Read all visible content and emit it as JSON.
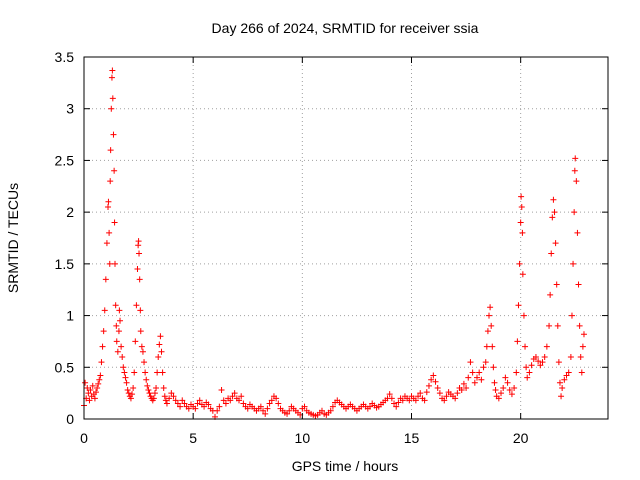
{
  "chart_data": {
    "type": "scatter",
    "title": "Day 266 of 2024, SRMTID for receiver ssia",
    "xlabel": "GPS time / hours",
    "ylabel": "SRMTID / TECUs",
    "xlim": [
      0,
      24
    ],
    "ylim": [
      0,
      3.5
    ],
    "xticks": [
      0,
      5,
      10,
      15,
      20
    ],
    "xtick_labels": [
      "0",
      "5",
      "10",
      "15",
      "20"
    ],
    "yticks": [
      0,
      0.5,
      1,
      1.5,
      2,
      2.5,
      3,
      3.5
    ],
    "ytick_labels": [
      "0",
      "0.5",
      "1",
      "1.5",
      "2",
      "2.5",
      "3",
      "3.5"
    ],
    "grid": true,
    "marker": "+",
    "color": "#ff0000",
    "series": [
      {
        "name": "SRMTID",
        "points": [
          [
            0.0,
            0.13
          ],
          [
            0.05,
            0.35
          ],
          [
            0.1,
            0.2
          ],
          [
            0.15,
            0.3
          ],
          [
            0.2,
            0.25
          ],
          [
            0.25,
            0.18
          ],
          [
            0.3,
            0.28
          ],
          [
            0.35,
            0.22
          ],
          [
            0.4,
            0.32
          ],
          [
            0.45,
            0.24
          ],
          [
            0.5,
            0.2
          ],
          [
            0.55,
            0.26
          ],
          [
            0.6,
            0.3
          ],
          [
            0.65,
            0.34
          ],
          [
            0.7,
            0.38
          ],
          [
            0.75,
            0.42
          ],
          [
            0.8,
            0.55
          ],
          [
            0.85,
            0.7
          ],
          [
            0.9,
            0.85
          ],
          [
            0.95,
            1.05
          ],
          [
            1.0,
            1.35
          ],
          [
            1.05,
            1.7
          ],
          [
            1.1,
            2.05
          ],
          [
            1.12,
            2.1
          ],
          [
            1.15,
            1.8
          ],
          [
            1.18,
            1.5
          ],
          [
            1.2,
            2.3
          ],
          [
            1.22,
            2.6
          ],
          [
            1.25,
            3.0
          ],
          [
            1.28,
            3.3
          ],
          [
            1.3,
            3.37
          ],
          [
            1.32,
            3.1
          ],
          [
            1.35,
            2.75
          ],
          [
            1.38,
            2.4
          ],
          [
            1.4,
            1.9
          ],
          [
            1.42,
            1.5
          ],
          [
            1.45,
            1.1
          ],
          [
            1.48,
            0.9
          ],
          [
            1.5,
            0.75
          ],
          [
            1.55,
            0.65
          ],
          [
            1.6,
            0.85
          ],
          [
            1.62,
            1.05
          ],
          [
            1.65,
            0.95
          ],
          [
            1.7,
            0.7
          ],
          [
            1.75,
            0.6
          ],
          [
            1.8,
            0.5
          ],
          [
            1.85,
            0.45
          ],
          [
            1.9,
            0.4
          ],
          [
            1.95,
            0.35
          ],
          [
            2.0,
            0.28
          ],
          [
            2.05,
            0.25
          ],
          [
            2.1,
            0.22
          ],
          [
            2.15,
            0.2
          ],
          [
            2.2,
            0.24
          ],
          [
            2.25,
            0.3
          ],
          [
            2.3,
            0.45
          ],
          [
            2.35,
            0.75
          ],
          [
            2.4,
            1.1
          ],
          [
            2.45,
            1.45
          ],
          [
            2.48,
            1.68
          ],
          [
            2.5,
            1.72
          ],
          [
            2.52,
            1.6
          ],
          [
            2.55,
            1.35
          ],
          [
            2.58,
            1.05
          ],
          [
            2.6,
            0.85
          ],
          [
            2.65,
            0.7
          ],
          [
            2.7,
            0.65
          ],
          [
            2.75,
            0.55
          ],
          [
            2.8,
            0.45
          ],
          [
            2.85,
            0.38
          ],
          [
            2.9,
            0.32
          ],
          [
            2.95,
            0.28
          ],
          [
            3.0,
            0.25
          ],
          [
            3.05,
            0.22
          ],
          [
            3.1,
            0.2
          ],
          [
            3.15,
            0.18
          ],
          [
            3.2,
            0.2
          ],
          [
            3.25,
            0.25
          ],
          [
            3.3,
            0.3
          ],
          [
            3.35,
            0.45
          ],
          [
            3.4,
            0.6
          ],
          [
            3.45,
            0.72
          ],
          [
            3.5,
            0.8
          ],
          [
            3.55,
            0.65
          ],
          [
            3.6,
            0.45
          ],
          [
            3.65,
            0.3
          ],
          [
            3.7,
            0.22
          ],
          [
            3.75,
            0.18
          ],
          [
            3.8,
            0.15
          ],
          [
            3.9,
            0.2
          ],
          [
            4.0,
            0.25
          ],
          [
            4.1,
            0.22
          ],
          [
            4.2,
            0.18
          ],
          [
            4.3,
            0.15
          ],
          [
            4.4,
            0.12
          ],
          [
            4.5,
            0.18
          ],
          [
            4.6,
            0.15
          ],
          [
            4.7,
            0.12
          ],
          [
            4.8,
            0.1
          ],
          [
            4.9,
            0.14
          ],
          [
            5.0,
            0.12
          ],
          [
            5.1,
            0.1
          ],
          [
            5.2,
            0.15
          ],
          [
            5.3,
            0.18
          ],
          [
            5.4,
            0.14
          ],
          [
            5.5,
            0.12
          ],
          [
            5.6,
            0.16
          ],
          [
            5.7,
            0.14
          ],
          [
            5.8,
            0.1
          ],
          [
            5.9,
            0.08
          ],
          [
            6.0,
            0.02
          ],
          [
            6.1,
            0.08
          ],
          [
            6.2,
            0.12
          ],
          [
            6.3,
            0.28
          ],
          [
            6.4,
            0.18
          ],
          [
            6.5,
            0.15
          ],
          [
            6.6,
            0.2
          ],
          [
            6.7,
            0.18
          ],
          [
            6.8,
            0.22
          ],
          [
            6.9,
            0.25
          ],
          [
            7.0,
            0.2
          ],
          [
            7.1,
            0.18
          ],
          [
            7.2,
            0.22
          ],
          [
            7.3,
            0.15
          ],
          [
            7.4,
            0.12
          ],
          [
            7.5,
            0.1
          ],
          [
            7.6,
            0.14
          ],
          [
            7.7,
            0.12
          ],
          [
            7.8,
            0.1
          ],
          [
            7.9,
            0.08
          ],
          [
            8.0,
            0.1
          ],
          [
            8.1,
            0.12
          ],
          [
            8.2,
            0.08
          ],
          [
            8.3,
            0.05
          ],
          [
            8.4,
            0.1
          ],
          [
            8.5,
            0.15
          ],
          [
            8.6,
            0.18
          ],
          [
            8.7,
            0.22
          ],
          [
            8.8,
            0.2
          ],
          [
            8.9,
            0.15
          ],
          [
            9.0,
            0.1
          ],
          [
            9.1,
            0.08
          ],
          [
            9.2,
            0.06
          ],
          [
            9.3,
            0.05
          ],
          [
            9.4,
            0.08
          ],
          [
            9.5,
            0.12
          ],
          [
            9.6,
            0.1
          ],
          [
            9.7,
            0.08
          ],
          [
            9.8,
            0.06
          ],
          [
            9.9,
            0.04
          ],
          [
            10.0,
            0.1
          ],
          [
            10.1,
            0.12
          ],
          [
            10.2,
            0.08
          ],
          [
            10.3,
            0.06
          ],
          [
            10.4,
            0.05
          ],
          [
            10.5,
            0.04
          ],
          [
            10.6,
            0.03
          ],
          [
            10.7,
            0.04
          ],
          [
            10.8,
            0.06
          ],
          [
            10.9,
            0.08
          ],
          [
            11.0,
            0.05
          ],
          [
            11.1,
            0.04
          ],
          [
            11.2,
            0.06
          ],
          [
            11.3,
            0.08
          ],
          [
            11.4,
            0.12
          ],
          [
            11.5,
            0.16
          ],
          [
            11.6,
            0.18
          ],
          [
            11.7,
            0.16
          ],
          [
            11.8,
            0.14
          ],
          [
            11.9,
            0.12
          ],
          [
            12.0,
            0.1
          ],
          [
            12.1,
            0.12
          ],
          [
            12.2,
            0.14
          ],
          [
            12.3,
            0.12
          ],
          [
            12.4,
            0.1
          ],
          [
            12.5,
            0.08
          ],
          [
            12.6,
            0.1
          ],
          [
            12.7,
            0.12
          ],
          [
            12.8,
            0.14
          ],
          [
            12.9,
            0.12
          ],
          [
            13.0,
            0.1
          ],
          [
            13.1,
            0.12
          ],
          [
            13.2,
            0.15
          ],
          [
            13.3,
            0.13
          ],
          [
            13.4,
            0.11
          ],
          [
            13.5,
            0.12
          ],
          [
            13.6,
            0.14
          ],
          [
            13.7,
            0.16
          ],
          [
            13.8,
            0.18
          ],
          [
            13.9,
            0.2
          ],
          [
            14.0,
            0.24
          ],
          [
            14.1,
            0.2
          ],
          [
            14.2,
            0.15
          ],
          [
            14.3,
            0.12
          ],
          [
            14.4,
            0.16
          ],
          [
            14.5,
            0.2
          ],
          [
            14.6,
            0.18
          ],
          [
            14.7,
            0.22
          ],
          [
            14.8,
            0.2
          ],
          [
            14.9,
            0.18
          ],
          [
            15.0,
            0.22
          ],
          [
            15.1,
            0.2
          ],
          [
            15.2,
            0.18
          ],
          [
            15.3,
            0.22
          ],
          [
            15.4,
            0.25
          ],
          [
            15.5,
            0.2
          ],
          [
            15.6,
            0.18
          ],
          [
            15.7,
            0.26
          ],
          [
            15.8,
            0.32
          ],
          [
            15.9,
            0.38
          ],
          [
            16.0,
            0.42
          ],
          [
            16.1,
            0.36
          ],
          [
            16.2,
            0.3
          ],
          [
            16.3,
            0.25
          ],
          [
            16.4,
            0.2
          ],
          [
            16.5,
            0.18
          ],
          [
            16.6,
            0.22
          ],
          [
            16.7,
            0.26
          ],
          [
            16.8,
            0.24
          ],
          [
            16.9,
            0.22
          ],
          [
            17.0,
            0.2
          ],
          [
            17.1,
            0.25
          ],
          [
            17.2,
            0.3
          ],
          [
            17.3,
            0.28
          ],
          [
            17.4,
            0.34
          ],
          [
            17.5,
            0.3
          ],
          [
            17.6,
            0.4
          ],
          [
            17.7,
            0.55
          ],
          [
            17.8,
            0.45
          ],
          [
            17.9,
            0.35
          ],
          [
            18.0,
            0.4
          ],
          [
            18.1,
            0.45
          ],
          [
            18.2,
            0.38
          ],
          [
            18.3,
            0.5
          ],
          [
            18.4,
            0.55
          ],
          [
            18.45,
            0.7
          ],
          [
            18.5,
            0.85
          ],
          [
            18.55,
            1.0
          ],
          [
            18.6,
            1.08
          ],
          [
            18.65,
            0.9
          ],
          [
            18.7,
            0.7
          ],
          [
            18.75,
            0.5
          ],
          [
            18.8,
            0.35
          ],
          [
            18.85,
            0.28
          ],
          [
            18.9,
            0.22
          ],
          [
            19.0,
            0.2
          ],
          [
            19.1,
            0.25
          ],
          [
            19.2,
            0.3
          ],
          [
            19.3,
            0.4
          ],
          [
            19.4,
            0.35
          ],
          [
            19.5,
            0.28
          ],
          [
            19.6,
            0.24
          ],
          [
            19.7,
            0.3
          ],
          [
            19.8,
            0.45
          ],
          [
            19.85,
            0.75
          ],
          [
            19.9,
            1.1
          ],
          [
            19.95,
            1.5
          ],
          [
            20.0,
            1.9
          ],
          [
            20.02,
            2.15
          ],
          [
            20.05,
            2.05
          ],
          [
            20.08,
            1.8
          ],
          [
            20.1,
            1.4
          ],
          [
            20.15,
            1.0
          ],
          [
            20.2,
            0.7
          ],
          [
            20.25,
            0.5
          ],
          [
            20.3,
            0.4
          ],
          [
            20.4,
            0.45
          ],
          [
            20.5,
            0.52
          ],
          [
            20.6,
            0.58
          ],
          [
            20.7,
            0.6
          ],
          [
            20.8,
            0.56
          ],
          [
            20.9,
            0.52
          ],
          [
            21.0,
            0.55
          ],
          [
            21.1,
            0.6
          ],
          [
            21.2,
            0.7
          ],
          [
            21.3,
            0.9
          ],
          [
            21.35,
            1.2
          ],
          [
            21.4,
            1.6
          ],
          [
            21.45,
            1.95
          ],
          [
            21.5,
            2.12
          ],
          [
            21.55,
            2.0
          ],
          [
            21.6,
            1.7
          ],
          [
            21.65,
            1.3
          ],
          [
            21.7,
            0.9
          ],
          [
            21.75,
            0.55
          ],
          [
            21.8,
            0.35
          ],
          [
            21.85,
            0.22
          ],
          [
            21.9,
            0.3
          ],
          [
            22.0,
            0.38
          ],
          [
            22.1,
            0.42
          ],
          [
            22.2,
            0.45
          ],
          [
            22.3,
            0.6
          ],
          [
            22.35,
            1.0
          ],
          [
            22.4,
            1.5
          ],
          [
            22.45,
            2.0
          ],
          [
            22.48,
            2.4
          ],
          [
            22.5,
            2.52
          ],
          [
            22.55,
            2.3
          ],
          [
            22.6,
            1.8
          ],
          [
            22.65,
            1.3
          ],
          [
            22.7,
            0.9
          ],
          [
            22.75,
            0.6
          ],
          [
            22.8,
            0.45
          ],
          [
            22.85,
            0.7
          ],
          [
            22.9,
            0.82
          ]
        ]
      }
    ]
  }
}
